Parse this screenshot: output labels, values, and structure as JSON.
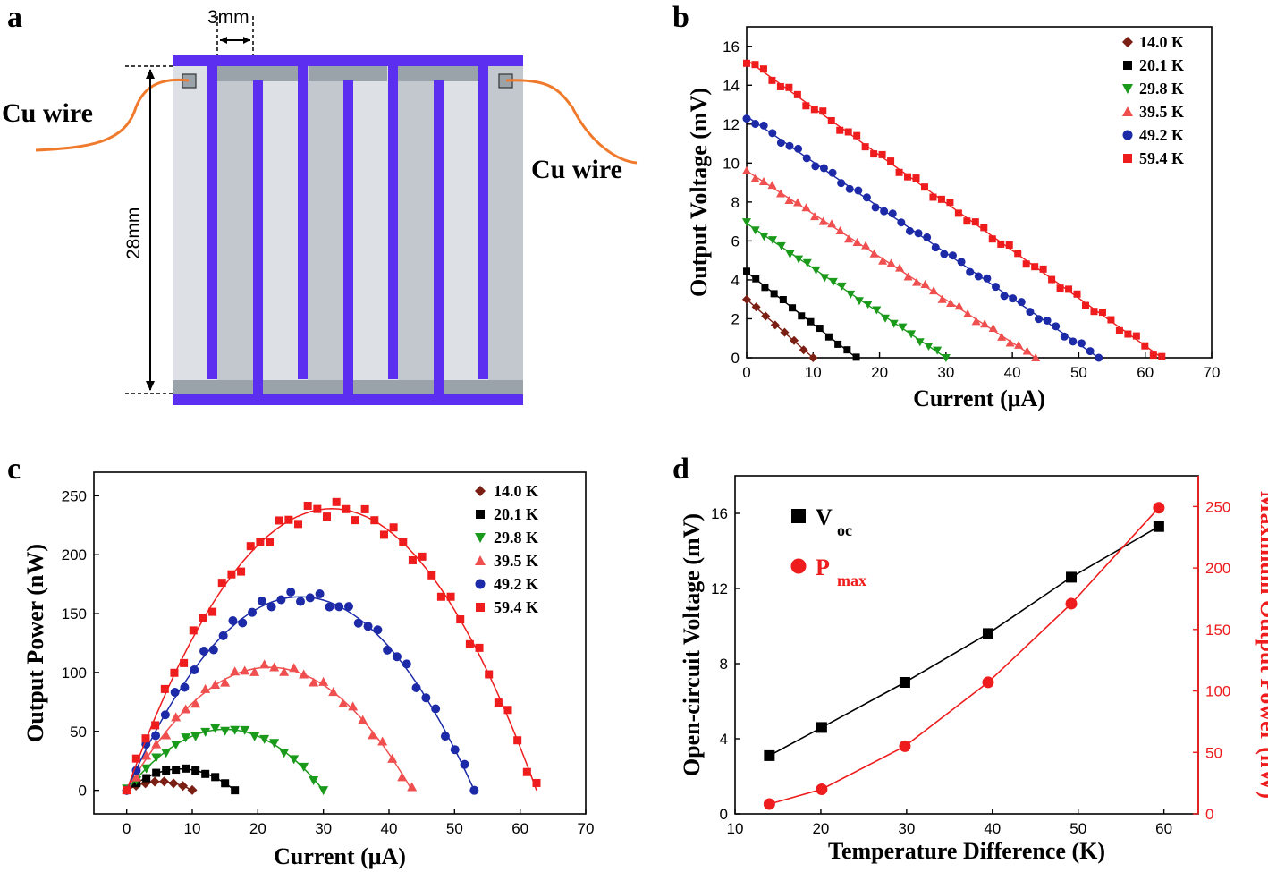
{
  "figure": {
    "panel_labels": [
      "a",
      "b",
      "c",
      "d"
    ],
    "diagram": {
      "cu_wire_left": "Cu wire",
      "cu_wire_right": "Cu wire",
      "width_dim": "3mm",
      "height_dim": "28mm"
    },
    "colors": {
      "electrode": "#5b2ef0",
      "light_strip": "#dde0e4",
      "dark_strip": "#c3c8ce",
      "bar_gray": "#9ba3aa",
      "wire": "#f07a2c",
      "t14": "#7b1f14",
      "t20": "#000000",
      "t29": "#1a9a1a",
      "t39": "#f04f4f",
      "t49": "#1c2aa8",
      "t59": "#ee1c1c",
      "voc": "#000000",
      "pmax": "#ee1c1c"
    },
    "icons": {
      "t14": "diamond-marker-icon",
      "t20": "square-marker-icon",
      "t29": "triangle-down-marker-icon",
      "t39": "triangle-up-marker-icon",
      "t49": "circle-marker-icon",
      "t59": "square-marker-icon"
    }
  },
  "chart_data": [
    {
      "id": "b",
      "type": "scatter",
      "xlabel": "Current (μA)",
      "ylabel": "Output Voltage (mV)",
      "xlim": [
        0,
        70
      ],
      "ylim": [
        0,
        17
      ],
      "xticks": [
        0,
        10,
        20,
        30,
        40,
        50,
        60,
        70
      ],
      "yticks": [
        0,
        2,
        4,
        6,
        8,
        10,
        12,
        14,
        16
      ],
      "legend_position": "top-right",
      "series": [
        {
          "name": "14.0 K",
          "marker": "diamond",
          "voc": 3.0,
          "isc": 10.0
        },
        {
          "name": "20.1 K",
          "marker": "square",
          "voc": 4.4,
          "isc": 16.5
        },
        {
          "name": "29.8 K",
          "marker": "triangle-down",
          "voc": 6.9,
          "isc": 30.0
        },
        {
          "name": "39.5 K",
          "marker": "triangle-up",
          "voc": 9.6,
          "isc": 43.5
        },
        {
          "name": "49.2 K",
          "marker": "circle",
          "voc": 12.4,
          "isc": 53.0
        },
        {
          "name": "59.4 K",
          "marker": "square",
          "voc": 15.3,
          "isc": 62.5
        }
      ]
    },
    {
      "id": "c",
      "type": "scatter",
      "xlabel": "Current (μA)",
      "ylabel": "Output Power (nW)",
      "xlim": [
        -5,
        70
      ],
      "ylim": [
        -20,
        270
      ],
      "xticks": [
        0,
        10,
        20,
        30,
        40,
        50,
        60,
        70
      ],
      "yticks": [
        0,
        50,
        100,
        150,
        200,
        250
      ],
      "legend_position": "top-right",
      "series": [
        {
          "name": "14.0 K",
          "marker": "diamond",
          "voc": 3.0,
          "isc": 10.0
        },
        {
          "name": "20.1 K",
          "marker": "square",
          "voc": 4.4,
          "isc": 16.5
        },
        {
          "name": "29.8 K",
          "marker": "triangle-down",
          "voc": 6.9,
          "isc": 30.0
        },
        {
          "name": "39.5 K",
          "marker": "triangle-up",
          "voc": 9.6,
          "isc": 43.5
        },
        {
          "name": "49.2 K",
          "marker": "circle",
          "voc": 12.4,
          "isc": 53.0
        },
        {
          "name": "59.4 K",
          "marker": "square",
          "voc": 15.3,
          "isc": 62.5
        }
      ]
    },
    {
      "id": "d",
      "type": "line",
      "xlabel": "Temperature Difference (K)",
      "ylabel": "Open-circuit Voltage (mV)",
      "y2label": "Maximum Output Power (nW)",
      "xlim": [
        10,
        64
      ],
      "ylim": [
        0,
        18
      ],
      "y2lim": [
        0,
        275
      ],
      "xticks": [
        10,
        20,
        30,
        40,
        50,
        60
      ],
      "yticks": [
        0,
        4,
        8,
        12,
        16
      ],
      "y2ticks": [
        0,
        50,
        100,
        150,
        200,
        250
      ],
      "legend_position": "top-left",
      "x": [
        14.0,
        20.1,
        29.8,
        39.5,
        49.2,
        59.4
      ],
      "series": [
        {
          "name": "V",
          "subscript": "oc",
          "axis": "left",
          "marker": "square",
          "values": [
            3.1,
            4.6,
            7.0,
            9.6,
            12.6,
            15.3
          ]
        },
        {
          "name": "P",
          "subscript": "max",
          "axis": "right",
          "marker": "circle",
          "values": [
            8,
            20,
            55,
            107,
            171,
            249
          ]
        }
      ]
    }
  ]
}
